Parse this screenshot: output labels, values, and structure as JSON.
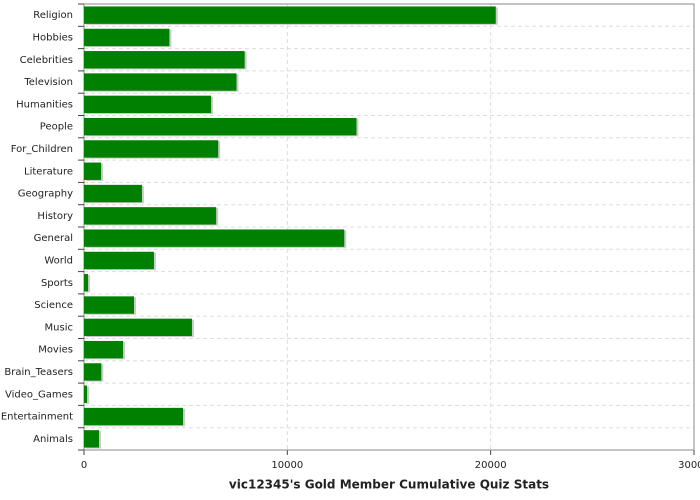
{
  "chart_data": {
    "type": "hbar",
    "x_label": "vic12345's Gold Member Cumulative Quiz Stats",
    "categories": [
      "Religion",
      "Hobbies",
      "Celebrities",
      "Television",
      "Humanities",
      "People",
      "For_Children",
      "Literature",
      "Geography",
      "History",
      "General",
      "World",
      "Sports",
      "Science",
      "Music",
      "Movies",
      "Brain_Teasers",
      "Video_Games",
      "Entertainment",
      "Animals"
    ],
    "values": [
      20250,
      4200,
      7900,
      7500,
      6250,
      13400,
      6600,
      840,
      2850,
      6500,
      12800,
      3440,
      200,
      2460,
      5310,
      1920,
      850,
      150,
      4870,
      740
    ],
    "color": "#008000",
    "xlim": [
      0,
      30000
    ],
    "xticks": [
      0,
      10000,
      20000,
      30000
    ],
    "grid": true
  }
}
